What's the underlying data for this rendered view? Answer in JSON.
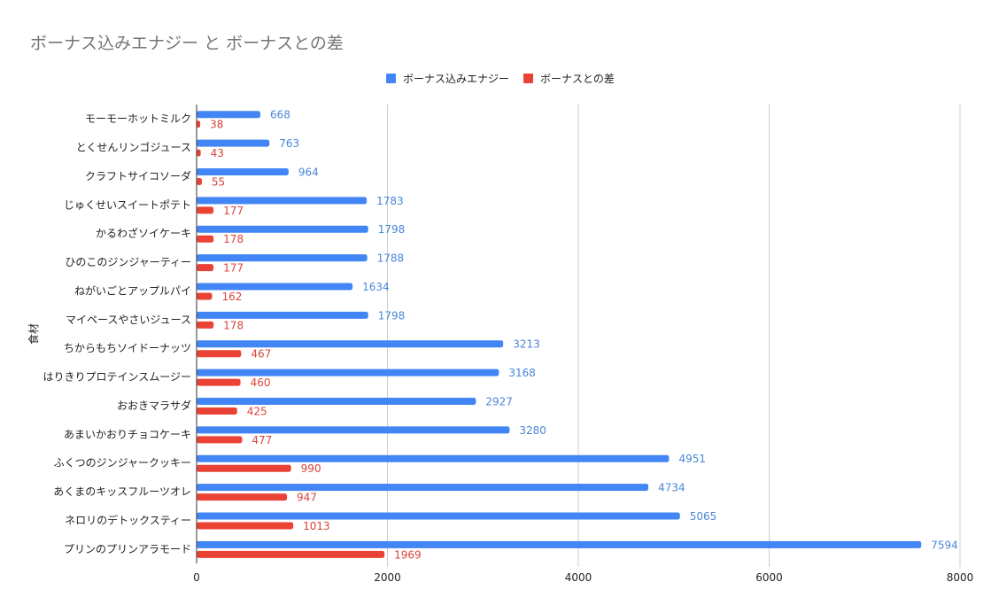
{
  "chart_data": {
    "type": "bar",
    "orientation": "horizontal",
    "title": "ボーナス込みエナジー と ボーナスとの差",
    "xlabel": "",
    "ylabel": "食材",
    "xlim": [
      0,
      8000
    ],
    "xticks": [
      "0",
      "2000",
      "4000",
      "6000",
      "8000"
    ],
    "xtick_values": [
      0,
      2000,
      4000,
      6000,
      8000
    ],
    "grid": true,
    "legend_position": "top",
    "categories": [
      "モーモーホットミルク",
      "とくせんリンゴジュース",
      "クラフトサイコソーダ",
      "じゅくせいスイートポテト",
      "かるわざソイケーキ",
      "ひのこのジンジャーティー",
      "ねがいごとアップルパイ",
      "マイペースやさいジュース",
      "ちからもちソイドーナッツ",
      "はりきりプロテインスムージー",
      "おおきマラサダ",
      "あまいかおりチョコケーキ",
      "ふくつのジンジャークッキー",
      "あくまのキッスフルーツオレ",
      "ネロリのデトックスティー",
      "プリンのプリンアラモード"
    ],
    "series": [
      {
        "name": "ボーナス込みエナジー",
        "color": "#4285f4",
        "label_color": "#4a86d8",
        "values": [
          668,
          763,
          964,
          1783,
          1798,
          1788,
          1634,
          1798,
          3213,
          3168,
          2927,
          3280,
          4951,
          4734,
          5065,
          7594
        ]
      },
      {
        "name": "ボーナスとの差",
        "color": "#ea4335",
        "label_color": "#d9443a",
        "values": [
          38,
          43,
          55,
          177,
          178,
          177,
          162,
          178,
          467,
          460,
          425,
          477,
          990,
          947,
          1013,
          1969
        ]
      }
    ]
  }
}
